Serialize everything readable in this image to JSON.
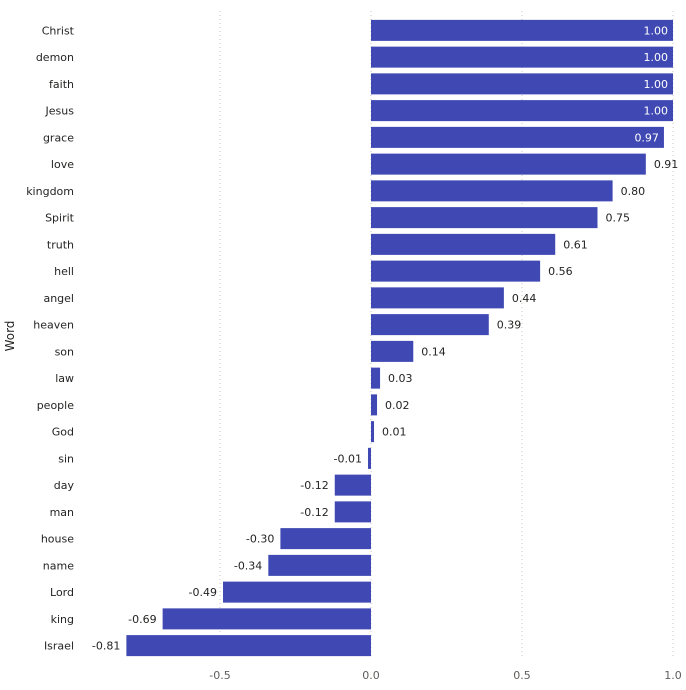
{
  "chart_data": {
    "type": "bar",
    "orientation": "horizontal",
    "ylabel": "Word",
    "xlabel": "",
    "xlim": [
      -0.9,
      1.0
    ],
    "xticks": [
      -0.5,
      0.0,
      0.5,
      1.0
    ],
    "xtick_labels": [
      "-0.5",
      "0.0",
      "0.5",
      "1.0"
    ],
    "grid": true,
    "bar_color": "#3f48b3",
    "categories": [
      "Christ",
      "demon",
      "faith",
      "Jesus",
      "grace",
      "love",
      "kingdom",
      "Spirit",
      "truth",
      "hell",
      "angel",
      "heaven",
      "son",
      "law",
      "people",
      "God",
      "sin",
      "day",
      "man",
      "house",
      "name",
      "Lord",
      "king",
      "Israel"
    ],
    "values": [
      1.0,
      1.0,
      1.0,
      1.0,
      0.97,
      0.91,
      0.8,
      0.75,
      0.61,
      0.56,
      0.44,
      0.39,
      0.14,
      0.03,
      0.02,
      0.01,
      -0.01,
      -0.12,
      -0.12,
      -0.3,
      -0.34,
      -0.49,
      -0.69,
      -0.81
    ],
    "data_labels": [
      "1.00",
      "1.00",
      "1.00",
      "1.00",
      "0.97",
      "0.91",
      "0.80",
      "0.75",
      "0.61",
      "0.56",
      "0.44",
      "0.39",
      "0.14",
      "0.03",
      "0.02",
      "0.01",
      "-0.01",
      "-0.12",
      "-0.12",
      "-0.30",
      "-0.34",
      "-0.49",
      "-0.69",
      "-0.81"
    ]
  }
}
